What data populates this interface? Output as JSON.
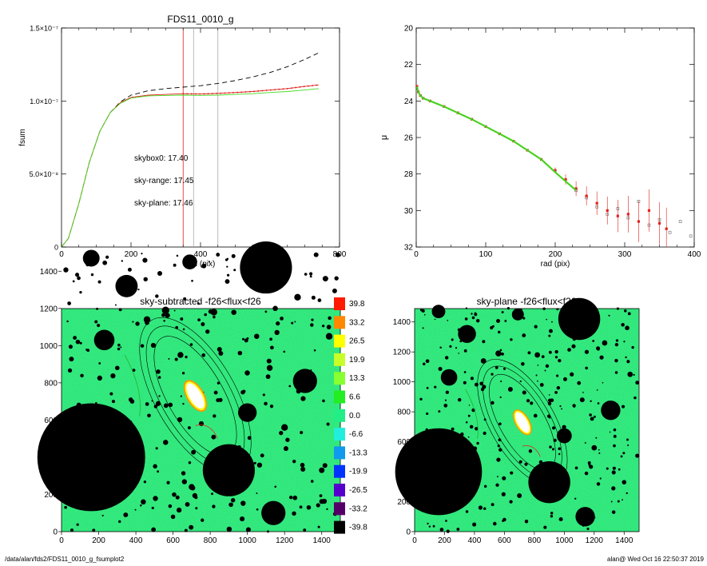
{
  "footer": {
    "path": "/data/alan/fds2/FDS11_0010_g_fsumplot2",
    "user_date": "alan@  Wed Oct 16 22:50:37 2019"
  },
  "colors": {
    "skybox0": "#000000",
    "sky_range": "#e0201b",
    "sky_plane": "#44dd22",
    "image_background": "#20e070",
    "masked": "#000000"
  },
  "chart_data": [
    {
      "type": "line",
      "title": "FDS11_0010_g",
      "xlabel": "rad (pix)",
      "ylabel": "fsum",
      "xlim": [
        0,
        800
      ],
      "ylim": [
        0,
        1.5e-07
      ],
      "x_ticks": [
        "0",
        "200",
        "400",
        "600",
        "800"
      ],
      "y_ticks": [
        "0",
        "5.0×10⁻⁸",
        "1.0×10⁻⁷",
        "1.5×10⁻⁷"
      ],
      "y_tick_values": [
        0,
        5e-08,
        1e-07,
        1.5e-07
      ],
      "grid": false,
      "vertical_lines": [
        {
          "x": 350,
          "color": "#e0201b"
        },
        {
          "x": 380,
          "color": "#aaaaaa"
        },
        {
          "x": 450,
          "color": "#aaaaaa"
        }
      ],
      "annotations": [
        {
          "text": "skybox0: 17.40",
          "color": "#000000"
        },
        {
          "text": "sky-range: 17.45",
          "color": "#e0201b"
        },
        {
          "text": "sky-plane: 17.46",
          "color": "#44dd22"
        }
      ],
      "series": [
        {
          "style": "dashed",
          "color": "#000000",
          "x": [
            0,
            20,
            50,
            80,
            110,
            140,
            170,
            200,
            250,
            300,
            350,
            400,
            450,
            500,
            550,
            600,
            650,
            700,
            740
          ],
          "values": [
            0,
            6e-09,
            3e-08,
            5.8e-08,
            7.9e-08,
            9.2e-08,
            9.95e-08,
            1.04e-07,
            1.07e-07,
            1.085e-07,
            1.095e-07,
            1.105e-07,
            1.12e-07,
            1.14e-07,
            1.165e-07,
            1.195e-07,
            1.235e-07,
            1.285e-07,
            1.33e-07
          ]
        },
        {
          "style": "solid",
          "color": "#e0201b",
          "x": [
            0,
            20,
            50,
            80,
            110,
            140,
            170,
            200,
            250,
            300,
            350,
            400,
            450,
            500,
            550,
            600,
            650,
            700,
            740
          ],
          "values": [
            0,
            6e-09,
            3e-08,
            5.8e-08,
            7.9e-08,
            9.2e-08,
            9.9e-08,
            1.025e-07,
            1.04e-07,
            1.045e-07,
            1.05e-07,
            1.048e-07,
            1.052e-07,
            1.058e-07,
            1.065e-07,
            1.075e-07,
            1.085e-07,
            1.1e-07,
            1.11e-07
          ]
        },
        {
          "style": "solid",
          "color": "#44dd22",
          "x": [
            0,
            20,
            50,
            80,
            110,
            140,
            170,
            200,
            250,
            300,
            350,
            400,
            450,
            500,
            550,
            600,
            650,
            700,
            740
          ],
          "values": [
            0,
            6e-09,
            3e-08,
            5.8e-08,
            7.9e-08,
            9.2e-08,
            9.85e-08,
            1.02e-07,
            1.035e-07,
            1.038e-07,
            1.04e-07,
            1.038e-07,
            1.04e-07,
            1.045e-07,
            1.05e-07,
            1.058e-07,
            1.065e-07,
            1.075e-07,
            1.085e-07
          ]
        }
      ]
    },
    {
      "type": "scatter",
      "xlabel": "rad (pix)",
      "ylabel": "μ",
      "xlim": [
        0,
        400
      ],
      "ylim": [
        32,
        20
      ],
      "y_axis_inverted": true,
      "x_ticks": [
        "0",
        "100",
        "200",
        "300",
        "400"
      ],
      "y_ticks": [
        "20",
        "22",
        "24",
        "26",
        "28",
        "30",
        "32"
      ],
      "grid": false,
      "series": [
        {
          "color": "#e0201b",
          "x": [
            1,
            3,
            6,
            10,
            20,
            40,
            60,
            80,
            100,
            120,
            140,
            160,
            180,
            200,
            215,
            230,
            245,
            260,
            275,
            290,
            305,
            320,
            335,
            350,
            360
          ],
          "values": [
            23.2,
            23.5,
            23.7,
            23.85,
            24.0,
            24.3,
            24.65,
            25.0,
            25.4,
            25.8,
            26.2,
            26.7,
            27.2,
            27.8,
            28.3,
            28.8,
            29.2,
            29.6,
            30.0,
            30.3,
            30.2,
            30.6,
            30.0,
            30.7,
            31.0
          ]
        },
        {
          "color": "#808080",
          "x": [
            230,
            245,
            260,
            275,
            290,
            305,
            320,
            335,
            350,
            365,
            380,
            395
          ],
          "values": [
            28.9,
            29.3,
            29.8,
            30.2,
            29.9,
            30.4,
            29.5,
            30.8,
            30.5,
            31.2,
            30.6,
            31.4
          ]
        },
        {
          "color": "#44dd22",
          "x": [
            1,
            3,
            6,
            10,
            20,
            40,
            60,
            80,
            100,
            120,
            140,
            160,
            180,
            200,
            215,
            230
          ],
          "values": [
            23.2,
            23.5,
            23.7,
            23.85,
            24.0,
            24.3,
            24.65,
            25.0,
            25.4,
            25.8,
            26.2,
            26.7,
            27.2,
            27.9,
            28.4,
            28.9
          ]
        }
      ]
    },
    {
      "type": "heatmap",
      "title": "sky-subtracted -f26<flux<f26",
      "xlim": [
        0,
        1500
      ],
      "ylim": [
        0,
        1500
      ],
      "x_ticks": [
        "0",
        "200",
        "400",
        "600",
        "800",
        "1000",
        "1200",
        "1400"
      ],
      "y_ticks": [
        "0",
        "200",
        "400",
        "600",
        "800",
        "1000",
        "1200",
        "1400"
      ]
    },
    {
      "type": "heatmap",
      "title": "sky-plane -f26<flux<f26",
      "xlim": [
        0,
        1500
      ],
      "ylim": [
        0,
        1500
      ],
      "x_ticks": [
        "0",
        "200",
        "400",
        "600",
        "800",
        "1000",
        "1200",
        "1400"
      ],
      "y_ticks": [
        "0",
        "200",
        "400",
        "600",
        "800",
        "1000",
        "1200",
        "1400"
      ]
    }
  ],
  "colorbar": {
    "levels": [
      {
        "label": "39.8",
        "color": "#ff1a00"
      },
      {
        "label": "33.2",
        "color": "#ff8800"
      },
      {
        "label": "26.5",
        "color": "#ffff00"
      },
      {
        "label": "19.9",
        "color": "#c8ff28"
      },
      {
        "label": "13.3",
        "color": "#88ff30"
      },
      {
        "label": "6.6",
        "color": "#22ee22"
      },
      {
        "label": "0.0",
        "color": "#22ee88"
      },
      {
        "label": "-6.6",
        "color": "#22eedd"
      },
      {
        "label": "-13.3",
        "color": "#1099ee"
      },
      {
        "label": "-19.9",
        "color": "#0033ff"
      },
      {
        "label": "-26.5",
        "color": "#5500cc"
      },
      {
        "label": "-33.2",
        "color": "#550066"
      },
      {
        "label": "-39.8",
        "color": "#000000"
      }
    ]
  },
  "masks": [
    {
      "x": 160,
      "y": 400,
      "r": 290
    },
    {
      "x": 900,
      "y": 330,
      "r": 140
    },
    {
      "x": 1100,
      "y": 1420,
      "r": 140
    },
    {
      "x": 1310,
      "y": 810,
      "r": 65
    },
    {
      "x": 1140,
      "y": 100,
      "r": 65
    },
    {
      "x": 1000,
      "y": 640,
      "r": 50
    },
    {
      "x": 160,
      "y": 1470,
      "r": 45
    },
    {
      "x": 350,
      "y": 1320,
      "r": 60
    },
    {
      "x": 230,
      "y": 1030,
      "r": 55
    },
    {
      "x": 690,
      "y": 1450,
      "r": 40
    },
    {
      "x": 560,
      "y": 1190,
      "r": 20
    },
    {
      "x": 460,
      "y": 1140,
      "r": 18
    },
    {
      "x": 820,
      "y": 1180,
      "r": 18
    },
    {
      "x": 1270,
      "y": 1260,
      "r": 18
    },
    {
      "x": 1440,
      "y": 1050,
      "r": 18
    },
    {
      "x": 640,
      "y": 950,
      "r": 16
    },
    {
      "x": 1120,
      "y": 880,
      "r": 16
    },
    {
      "x": 1200,
      "y": 560,
      "r": 18
    },
    {
      "x": 560,
      "y": 480,
      "r": 14
    },
    {
      "x": 700,
      "y": 240,
      "r": 16
    },
    {
      "x": 1400,
      "y": 330,
      "r": 15
    },
    {
      "x": 440,
      "y": 160,
      "r": 14
    },
    {
      "x": 1420,
      "y": 1360,
      "r": 15
    },
    {
      "x": 1050,
      "y": 1050,
      "r": 14
    },
    {
      "x": 850,
      "y": 980,
      "r": 13
    },
    {
      "x": 520,
      "y": 860,
      "r": 12
    },
    {
      "x": 380,
      "y": 700,
      "r": 12
    },
    {
      "x": 1330,
      "y": 130,
      "r": 12
    },
    {
      "x": 600,
      "y": 80,
      "r": 12
    },
    {
      "x": 960,
      "y": 960,
      "r": 12
    },
    {
      "x": 1150,
      "y": 1200,
      "r": 14
    },
    {
      "x": 300,
      "y": 880,
      "r": 12
    }
  ]
}
